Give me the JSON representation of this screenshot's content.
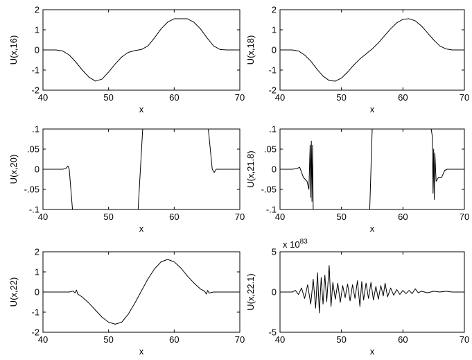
{
  "chart_data": [
    {
      "type": "line",
      "xlabel": "x",
      "ylabel": "U(x,16)",
      "xlim": [
        40,
        70
      ],
      "ylim": [
        -2,
        2
      ],
      "xticks": [
        40,
        50,
        60,
        70
      ],
      "yticks": [
        -2,
        -1,
        0,
        1,
        2
      ],
      "exponent": "",
      "grid": false,
      "x": [
        40,
        42,
        43,
        44,
        45,
        46,
        47,
        48,
        49,
        50,
        51,
        52,
        53,
        54,
        55,
        56,
        57,
        58,
        59,
        60,
        61,
        62,
        63,
        64,
        65,
        66,
        67,
        68,
        69,
        70
      ],
      "y": [
        0,
        0,
        -0.05,
        -0.25,
        -0.6,
        -1.0,
        -1.35,
        -1.55,
        -1.45,
        -1.1,
        -0.7,
        -0.35,
        -0.12,
        -0.03,
        0.02,
        0.2,
        0.6,
        1.05,
        1.38,
        1.55,
        1.55,
        1.55,
        1.38,
        1.05,
        0.6,
        0.2,
        0.02,
        0,
        0,
        0
      ]
    },
    {
      "type": "line",
      "xlabel": "x",
      "ylabel": "U(x,18)",
      "xlim": [
        40,
        70
      ],
      "ylim": [
        -2,
        2
      ],
      "xticks": [
        40,
        50,
        60,
        70
      ],
      "yticks": [
        -2,
        -1,
        0,
        1,
        2
      ],
      "exponent": "",
      "grid": false,
      "x": [
        40,
        42,
        43,
        44,
        45,
        46,
        47,
        48,
        49,
        50,
        51,
        52,
        53,
        54,
        55,
        56,
        57,
        58,
        59,
        60,
        61,
        62,
        63,
        64,
        65,
        66,
        67,
        68,
        69,
        70
      ],
      "y": [
        0,
        0,
        -0.05,
        -0.25,
        -0.55,
        -0.95,
        -1.3,
        -1.52,
        -1.55,
        -1.4,
        -1.1,
        -0.75,
        -0.45,
        -0.2,
        0.05,
        0.35,
        0.7,
        1.05,
        1.35,
        1.52,
        1.55,
        1.45,
        1.2,
        0.85,
        0.5,
        0.2,
        0.05,
        0,
        0,
        0
      ]
    },
    {
      "type": "line",
      "xlabel": "x",
      "ylabel": "U(x,20)",
      "xlim": [
        40,
        70
      ],
      "ylim": [
        -0.1,
        0.1
      ],
      "xticks": [
        40,
        50,
        60,
        70
      ],
      "yticks": [
        -0.1,
        -0.05,
        0,
        0.05,
        0.1
      ],
      "exponent": "",
      "grid": false,
      "x": [
        40,
        43,
        43.5,
        43.8,
        44,
        44.5,
        54.5,
        55.2,
        65.2,
        65.8,
        66.1,
        66.4,
        67,
        70
      ],
      "y": [
        0,
        0,
        0.002,
        0.008,
        0,
        -0.1,
        -0.1,
        0.1,
        0.1,
        0,
        -0.008,
        0,
        0,
        0
      ]
    },
    {
      "type": "line",
      "xlabel": "x",
      "ylabel": "U(x,21.8)",
      "xlim": [
        40,
        70
      ],
      "ylim": [
        -0.1,
        0.1
      ],
      "xticks": [
        40,
        50,
        60,
        70
      ],
      "yticks": [
        -0.1,
        -0.05,
        0,
        0.05,
        0.1
      ],
      "exponent": "",
      "grid": false,
      "x": [
        40,
        42,
        42.8,
        43.2,
        43.8,
        44.4,
        44.7,
        44.9,
        45.0,
        45.1,
        45.2,
        45.3,
        45.4,
        54.6,
        55.0,
        64.6,
        64.8,
        64.9,
        65.0,
        65.1,
        65.2,
        65.4,
        65.8,
        66.3,
        66.8,
        67.2,
        68,
        70
      ],
      "y": [
        0,
        0,
        0.002,
        0.005,
        -0.02,
        -0.03,
        -0.05,
        0.06,
        -0.07,
        0.07,
        -0.08,
        0.06,
        -0.1,
        -0.1,
        0.1,
        0.1,
        0.08,
        -0.06,
        0.05,
        -0.075,
        0.04,
        -0.03,
        -0.02,
        -0.02,
        -0.003,
        0,
        0,
        0
      ]
    },
    {
      "type": "line",
      "xlabel": "x",
      "ylabel": "U(x,22)",
      "xlim": [
        40,
        70
      ],
      "ylim": [
        -2,
        2
      ],
      "xticks": [
        40,
        50,
        60,
        70
      ],
      "yticks": [
        -2,
        -1,
        0,
        1,
        2
      ],
      "exponent": "",
      "grid": false,
      "x": [
        40,
        44,
        44.6,
        44.9,
        45.1,
        45.3,
        46,
        47,
        48,
        49,
        50,
        51,
        52,
        53,
        54,
        55,
        56,
        57,
        58,
        59,
        60,
        61,
        62,
        63,
        64,
        64.6,
        64.9,
        65.1,
        65.3,
        66,
        70
      ],
      "y": [
        0,
        0,
        0.05,
        -0.05,
        0.1,
        -0.1,
        -0.25,
        -0.55,
        -0.9,
        -1.25,
        -1.5,
        -1.6,
        -1.5,
        -1.1,
        -0.55,
        0.05,
        0.65,
        1.15,
        1.5,
        1.62,
        1.5,
        1.2,
        0.8,
        0.45,
        0.15,
        0.05,
        -0.1,
        0.08,
        -0.05,
        0,
        0
      ]
    },
    {
      "type": "line",
      "xlabel": "x",
      "ylabel": "U(x,22.1)",
      "xlim": [
        40,
        70
      ],
      "ylim": [
        -5,
        5
      ],
      "xticks": [
        40,
        50,
        60,
        70
      ],
      "yticks": [
        -5,
        0,
        5
      ],
      "exponent": "x 10",
      "exponent_power": "83",
      "grid": false,
      "x": [
        40,
        42,
        42.5,
        43.0,
        43.5,
        44.0,
        44.5,
        45.0,
        45.4,
        45.8,
        46.1,
        46.4,
        46.7,
        47.0,
        47.3,
        47.6,
        48.0,
        48.3,
        48.6,
        49.0,
        49.4,
        49.8,
        50.2,
        50.6,
        51.0,
        51.4,
        51.8,
        52.2,
        52.6,
        53.0,
        53.3,
        53.6,
        54.0,
        54.4,
        54.8,
        55.2,
        55.6,
        56.0,
        56.4,
        56.8,
        57.1,
        57.5,
        58.0,
        58.5,
        59.0,
        59.5,
        60.0,
        60.5,
        61.0,
        61.5,
        62.0,
        62.5,
        63,
        64,
        65,
        66,
        67,
        68,
        69,
        70
      ],
      "y": [
        0,
        0,
        0.2,
        -0.3,
        0.5,
        -0.8,
        0.9,
        -1.5,
        1.6,
        -2.0,
        2.4,
        -2.6,
        1.8,
        -1.5,
        2.1,
        -1.2,
        3.3,
        -1.8,
        1.2,
        -0.9,
        1.1,
        -1.3,
        0.8,
        -0.7,
        1.0,
        -1.1,
        0.9,
        -0.8,
        1.4,
        -1.8,
        1.3,
        -1.0,
        1.1,
        -0.8,
        1.2,
        -1.0,
        0.7,
        -0.9,
        0.8,
        -0.5,
        1.1,
        -0.6,
        0.5,
        -0.4,
        0.3,
        -0.3,
        0.2,
        -0.2,
        0.2,
        -0.2,
        0.4,
        -0.1,
        0.1,
        -0.1,
        0.1,
        0,
        0.1,
        0,
        0,
        0
      ]
    }
  ]
}
